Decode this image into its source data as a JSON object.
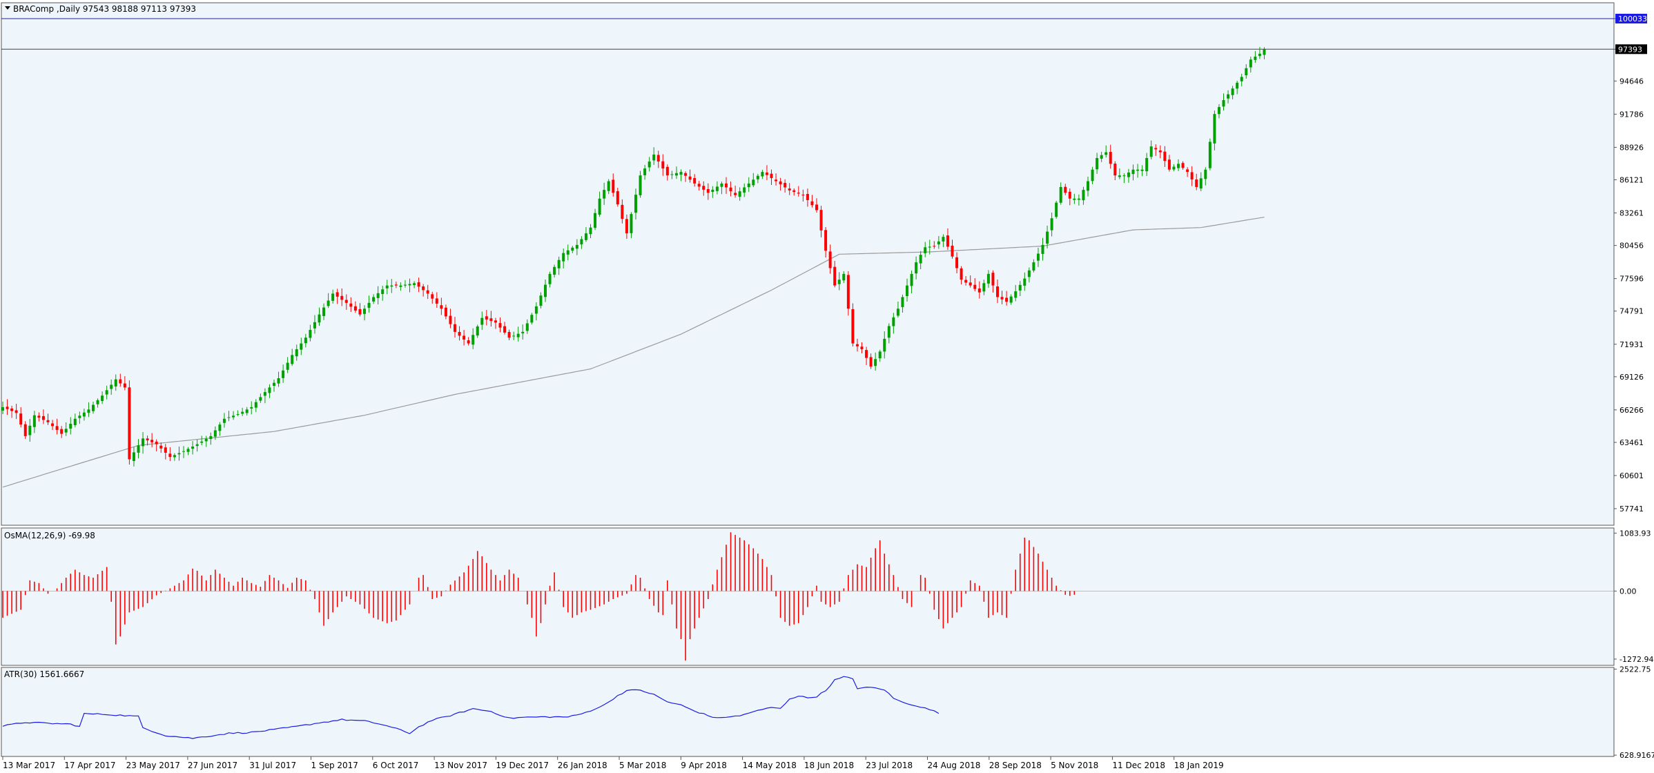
{
  "header": {
    "title": "BRAComp ,Daily  97543 98188 97113 97393",
    "osma_label": "OsMA(12,26,9) -69.98",
    "atr_label": "ATR(30) 1561.6667"
  },
  "colors": {
    "background": "#eef6fc",
    "bull": "#00a000",
    "bear": "#ff0000",
    "ma": "#9a9a9a",
    "atr": "#1a1ae6",
    "hline_high": "#2020a0",
    "hline_last": "#404040",
    "osma": "#ff0000"
  },
  "chart_data": [
    {
      "type": "candlestick",
      "name": "price",
      "ylim": [
        56311,
        101400
      ],
      "y_ticks": [
        57741,
        60601,
        63461,
        66266,
        69126,
        71931,
        74791,
        77596,
        80456,
        83261,
        86121,
        88926,
        91786,
        94646,
        97393,
        100033
      ],
      "x_tick_labels": [
        "13 Mar 2017",
        "17 Apr 2017",
        "23 May 2017",
        "27 Jun 2017",
        "31 Jul 2017",
        "1 Sep 2017",
        "6 Oct 2017",
        "13 Nov 2017",
        "19 Dec 2017",
        "26 Jan 2018",
        "5 Mar 2018",
        "9 Apr 2018",
        "14 May 2018",
        "18 Jun 2018",
        "23 Jul 2018",
        "24 Aug 2018",
        "28 Sep 2018",
        "5 Nov 2018",
        "11 Dec 2018",
        "18 Jan 2019"
      ],
      "price_anchors": [
        [
          0,
          66500
        ],
        [
          3,
          66000
        ],
        [
          5,
          64000
        ],
        [
          7,
          65800
        ],
        [
          10,
          65200
        ],
        [
          13,
          64200
        ],
        [
          16,
          65500
        ],
        [
          19,
          66300
        ],
        [
          22,
          67500
        ],
        [
          25,
          68900
        ],
        [
          27,
          68200
        ],
        [
          28,
          62000
        ],
        [
          31,
          63800
        ],
        [
          34,
          63300
        ],
        [
          37,
          62200
        ],
        [
          40,
          62700
        ],
        [
          43,
          63300
        ],
        [
          46,
          64000
        ],
        [
          49,
          65500
        ],
        [
          52,
          65900
        ],
        [
          55,
          66500
        ],
        [
          58,
          67800
        ],
        [
          61,
          69000
        ],
        [
          64,
          71000
        ],
        [
          67,
          72500
        ],
        [
          70,
          74500
        ],
        [
          73,
          76300
        ],
        [
          76,
          75500
        ],
        [
          79,
          74500
        ],
        [
          82,
          76000
        ],
        [
          85,
          77000
        ],
        [
          88,
          77000
        ],
        [
          91,
          77200
        ],
        [
          94,
          76300
        ],
        [
          97,
          75000
        ],
        [
          100,
          73000
        ],
        [
          103,
          72000
        ],
        [
          106,
          74200
        ],
        [
          109,
          73800
        ],
        [
          112,
          72500
        ],
        [
          115,
          73000
        ],
        [
          118,
          75200
        ],
        [
          121,
          78000
        ],
        [
          124,
          79800
        ],
        [
          127,
          80500
        ],
        [
          130,
          82000
        ],
        [
          132,
          84500
        ],
        [
          134,
          86000
        ],
        [
          136,
          84000
        ],
        [
          138,
          81500
        ],
        [
          141,
          86500
        ],
        [
          144,
          88300
        ],
        [
          147,
          86500
        ],
        [
          150,
          86800
        ],
        [
          153,
          85800
        ],
        [
          156,
          85000
        ],
        [
          159,
          85800
        ],
        [
          162,
          84800
        ],
        [
          165,
          85800
        ],
        [
          168,
          86800
        ],
        [
          171,
          86000
        ],
        [
          174,
          85200
        ],
        [
          177,
          84800
        ],
        [
          180,
          83500
        ],
        [
          182,
          80000
        ],
        [
          184,
          77000
        ],
        [
          186,
          78000
        ],
        [
          188,
          72000
        ],
        [
          190,
          71500
        ],
        [
          192,
          70000
        ],
        [
          194,
          71300
        ],
        [
          196,
          73500
        ],
        [
          198,
          75000
        ],
        [
          200,
          77000
        ],
        [
          202,
          79000
        ],
        [
          204,
          80300
        ],
        [
          206,
          80400
        ],
        [
          208,
          81200
        ],
        [
          210,
          79500
        ],
        [
          212,
          77500
        ],
        [
          214,
          77000
        ],
        [
          216,
          76400
        ],
        [
          218,
          78000
        ],
        [
          220,
          76000
        ],
        [
          222,
          75600
        ],
        [
          224,
          76500
        ],
        [
          226,
          77600
        ],
        [
          228,
          79000
        ],
        [
          230,
          80500
        ],
        [
          232,
          82800
        ],
        [
          234,
          85500
        ],
        [
          236,
          84500
        ],
        [
          238,
          84500
        ],
        [
          240,
          86000
        ],
        [
          242,
          88000
        ],
        [
          244,
          88500
        ],
        [
          246,
          86500
        ],
        [
          248,
          86500
        ],
        [
          250,
          87000
        ],
        [
          252,
          87000
        ],
        [
          254,
          89000
        ],
        [
          256,
          88500
        ],
        [
          258,
          87000
        ],
        [
          260,
          87500
        ],
        [
          262,
          86800
        ],
        [
          264,
          85500
        ],
        [
          266,
          87000
        ],
        [
          268,
          91800
        ],
        [
          270,
          93000
        ],
        [
          272,
          94000
        ],
        [
          274,
          95000
        ],
        [
          276,
          96500
        ],
        [
          278,
          97000
        ],
        [
          279,
          97393
        ]
      ],
      "ma_anchors": [
        [
          0,
          59600
        ],
        [
          30,
          63200
        ],
        [
          60,
          64400
        ],
        [
          80,
          65800
        ],
        [
          100,
          67600
        ],
        [
          130,
          69800
        ],
        [
          150,
          72800
        ],
        [
          170,
          76600
        ],
        [
          185,
          79700
        ],
        [
          205,
          79900
        ],
        [
          230,
          80400
        ],
        [
          250,
          81800
        ],
        [
          265,
          82000
        ],
        [
          279,
          82900
        ]
      ],
      "horizontal_lines": [
        100033,
        97393
      ]
    },
    {
      "type": "histogram",
      "name": "OsMA(12,26,9)",
      "ylim": [
        -1390,
        1180
      ],
      "y_ticks": [
        1083.93,
        0.0,
        -1272.94
      ],
      "last_value": -69.98,
      "anchors": [
        [
          0,
          -500
        ],
        [
          4,
          -350
        ],
        [
          6,
          200
        ],
        [
          8,
          150
        ],
        [
          10,
          -50
        ],
        [
          12,
          50
        ],
        [
          14,
          250
        ],
        [
          16,
          400
        ],
        [
          18,
          300
        ],
        [
          20,
          250
        ],
        [
          22,
          380
        ],
        [
          23,
          450
        ],
        [
          24,
          -200
        ],
        [
          25,
          -1000
        ],
        [
          26,
          -850
        ],
        [
          28,
          -400
        ],
        [
          31,
          -300
        ],
        [
          34,
          -80
        ],
        [
          37,
          50
        ],
        [
          40,
          200
        ],
        [
          42,
          420
        ],
        [
          43,
          380
        ],
        [
          45,
          200
        ],
        [
          47,
          400
        ],
        [
          49,
          250
        ],
        [
          51,
          100
        ],
        [
          53,
          250
        ],
        [
          55,
          150
        ],
        [
          57,
          80
        ],
        [
          59,
          300
        ],
        [
          61,
          200
        ],
        [
          63,
          60
        ],
        [
          65,
          250
        ],
        [
          67,
          200
        ],
        [
          69,
          -150
        ],
        [
          71,
          -650
        ],
        [
          73,
          -400
        ],
        [
          76,
          -100
        ],
        [
          79,
          -250
        ],
        [
          82,
          -500
        ],
        [
          85,
          -600
        ],
        [
          87,
          -550
        ],
        [
          90,
          -250
        ],
        [
          92,
          250
        ],
        [
          93,
          300
        ],
        [
          95,
          -150
        ],
        [
          97,
          -100
        ],
        [
          99,
          120
        ],
        [
          102,
          350
        ],
        [
          104,
          600
        ],
        [
          105,
          750
        ],
        [
          106,
          650
        ],
        [
          108,
          400
        ],
        [
          110,
          200
        ],
        [
          112,
          400
        ],
        [
          114,
          250
        ],
        [
          117,
          -500
        ],
        [
          118,
          -850
        ],
        [
          119,
          -600
        ],
        [
          121,
          100
        ],
        [
          122,
          350
        ],
        [
          124,
          -300
        ],
        [
          126,
          -500
        ],
        [
          128,
          -400
        ],
        [
          130,
          -350
        ],
        [
          133,
          -250
        ],
        [
          135,
          -150
        ],
        [
          138,
          -50
        ],
        [
          140,
          300
        ],
        [
          141,
          250
        ],
        [
          143,
          -150
        ],
        [
          145,
          -400
        ],
        [
          146,
          -450
        ],
        [
          147,
          200
        ],
        [
          149,
          -700
        ],
        [
          150,
          -900
        ],
        [
          151,
          -1300
        ],
        [
          152,
          -900
        ],
        [
          154,
          -500
        ],
        [
          156,
          -150
        ],
        [
          158,
          400
        ],
        [
          161,
          1100
        ],
        [
          162,
          1050
        ],
        [
          164,
          950
        ],
        [
          166,
          800
        ],
        [
          168,
          600
        ],
        [
          170,
          300
        ],
        [
          172,
          -500
        ],
        [
          174,
          -650
        ],
        [
          176,
          -600
        ],
        [
          178,
          -300
        ],
        [
          180,
          100
        ],
        [
          181,
          -200
        ],
        [
          183,
          -300
        ],
        [
          185,
          -200
        ],
        [
          187,
          300
        ],
        [
          189,
          500
        ],
        [
          191,
          450
        ],
        [
          193,
          800
        ],
        [
          194,
          950
        ],
        [
          195,
          700
        ],
        [
          197,
          300
        ],
        [
          199,
          -150
        ],
        [
          201,
          -300
        ],
        [
          203,
          300
        ],
        [
          204,
          250
        ],
        [
          206,
          -350
        ],
        [
          208,
          -700
        ],
        [
          210,
          -500
        ],
        [
          212,
          -300
        ],
        [
          214,
          200
        ],
        [
          216,
          100
        ],
        [
          218,
          -500
        ],
        [
          220,
          -400
        ],
        [
          222,
          -500
        ],
        [
          224,
          400
        ],
        [
          226,
          1000
        ],
        [
          227,
          950
        ],
        [
          229,
          700
        ],
        [
          231,
          400
        ],
        [
          233,
          100
        ],
        [
          235,
          -70
        ],
        [
          236,
          -90
        ],
        [
          237,
          -70
        ]
      ]
    },
    {
      "type": "line",
      "name": "ATR(30)",
      "ylim": [
        600,
        2560
      ],
      "y_ticks": [
        2522.75,
        628.9167
      ],
      "last_value": 1561.6667,
      "anchors": [
        [
          0,
          1270
        ],
        [
          5,
          1350
        ],
        [
          10,
          1330
        ],
        [
          15,
          1310
        ],
        [
          17,
          1260
        ],
        [
          18,
          1540
        ],
        [
          22,
          1530
        ],
        [
          27,
          1500
        ],
        [
          30,
          1480
        ],
        [
          31,
          1230
        ],
        [
          36,
          1060
        ],
        [
          42,
          1000
        ],
        [
          45,
          1040
        ],
        [
          50,
          1110
        ],
        [
          55,
          1130
        ],
        [
          60,
          1190
        ],
        [
          65,
          1260
        ],
        [
          70,
          1340
        ],
        [
          75,
          1410
        ],
        [
          80,
          1380
        ],
        [
          84,
          1300
        ],
        [
          88,
          1180
        ],
        [
          90,
          1110
        ],
        [
          92,
          1250
        ],
        [
          95,
          1400
        ],
        [
          99,
          1500
        ],
        [
          104,
          1650
        ],
        [
          108,
          1590
        ],
        [
          112,
          1440
        ],
        [
          115,
          1460
        ],
        [
          120,
          1470
        ],
        [
          125,
          1470
        ],
        [
          127,
          1510
        ],
        [
          129,
          1570
        ],
        [
          131,
          1650
        ],
        [
          133,
          1730
        ],
        [
          136,
          1940
        ],
        [
          138,
          2050
        ],
        [
          141,
          2060
        ],
        [
          144,
          1960
        ],
        [
          147,
          1800
        ],
        [
          150,
          1730
        ],
        [
          153,
          1600
        ],
        [
          156,
          1500
        ],
        [
          158,
          1440
        ],
        [
          160,
          1470
        ],
        [
          163,
          1490
        ],
        [
          165,
          1560
        ],
        [
          168,
          1630
        ],
        [
          170,
          1680
        ],
        [
          172,
          1650
        ],
        [
          174,
          1870
        ],
        [
          176,
          1930
        ],
        [
          178,
          1890
        ],
        [
          180,
          1920
        ],
        [
          182,
          2050
        ],
        [
          184,
          2280
        ],
        [
          186,
          2350
        ],
        [
          188,
          2310
        ],
        [
          189,
          2100
        ],
        [
          192,
          2120
        ],
        [
          195,
          2070
        ],
        [
          197,
          1880
        ],
        [
          199,
          1790
        ],
        [
          202,
          1720
        ],
        [
          205,
          1630
        ],
        [
          207,
          1560
        ]
      ]
    }
  ]
}
